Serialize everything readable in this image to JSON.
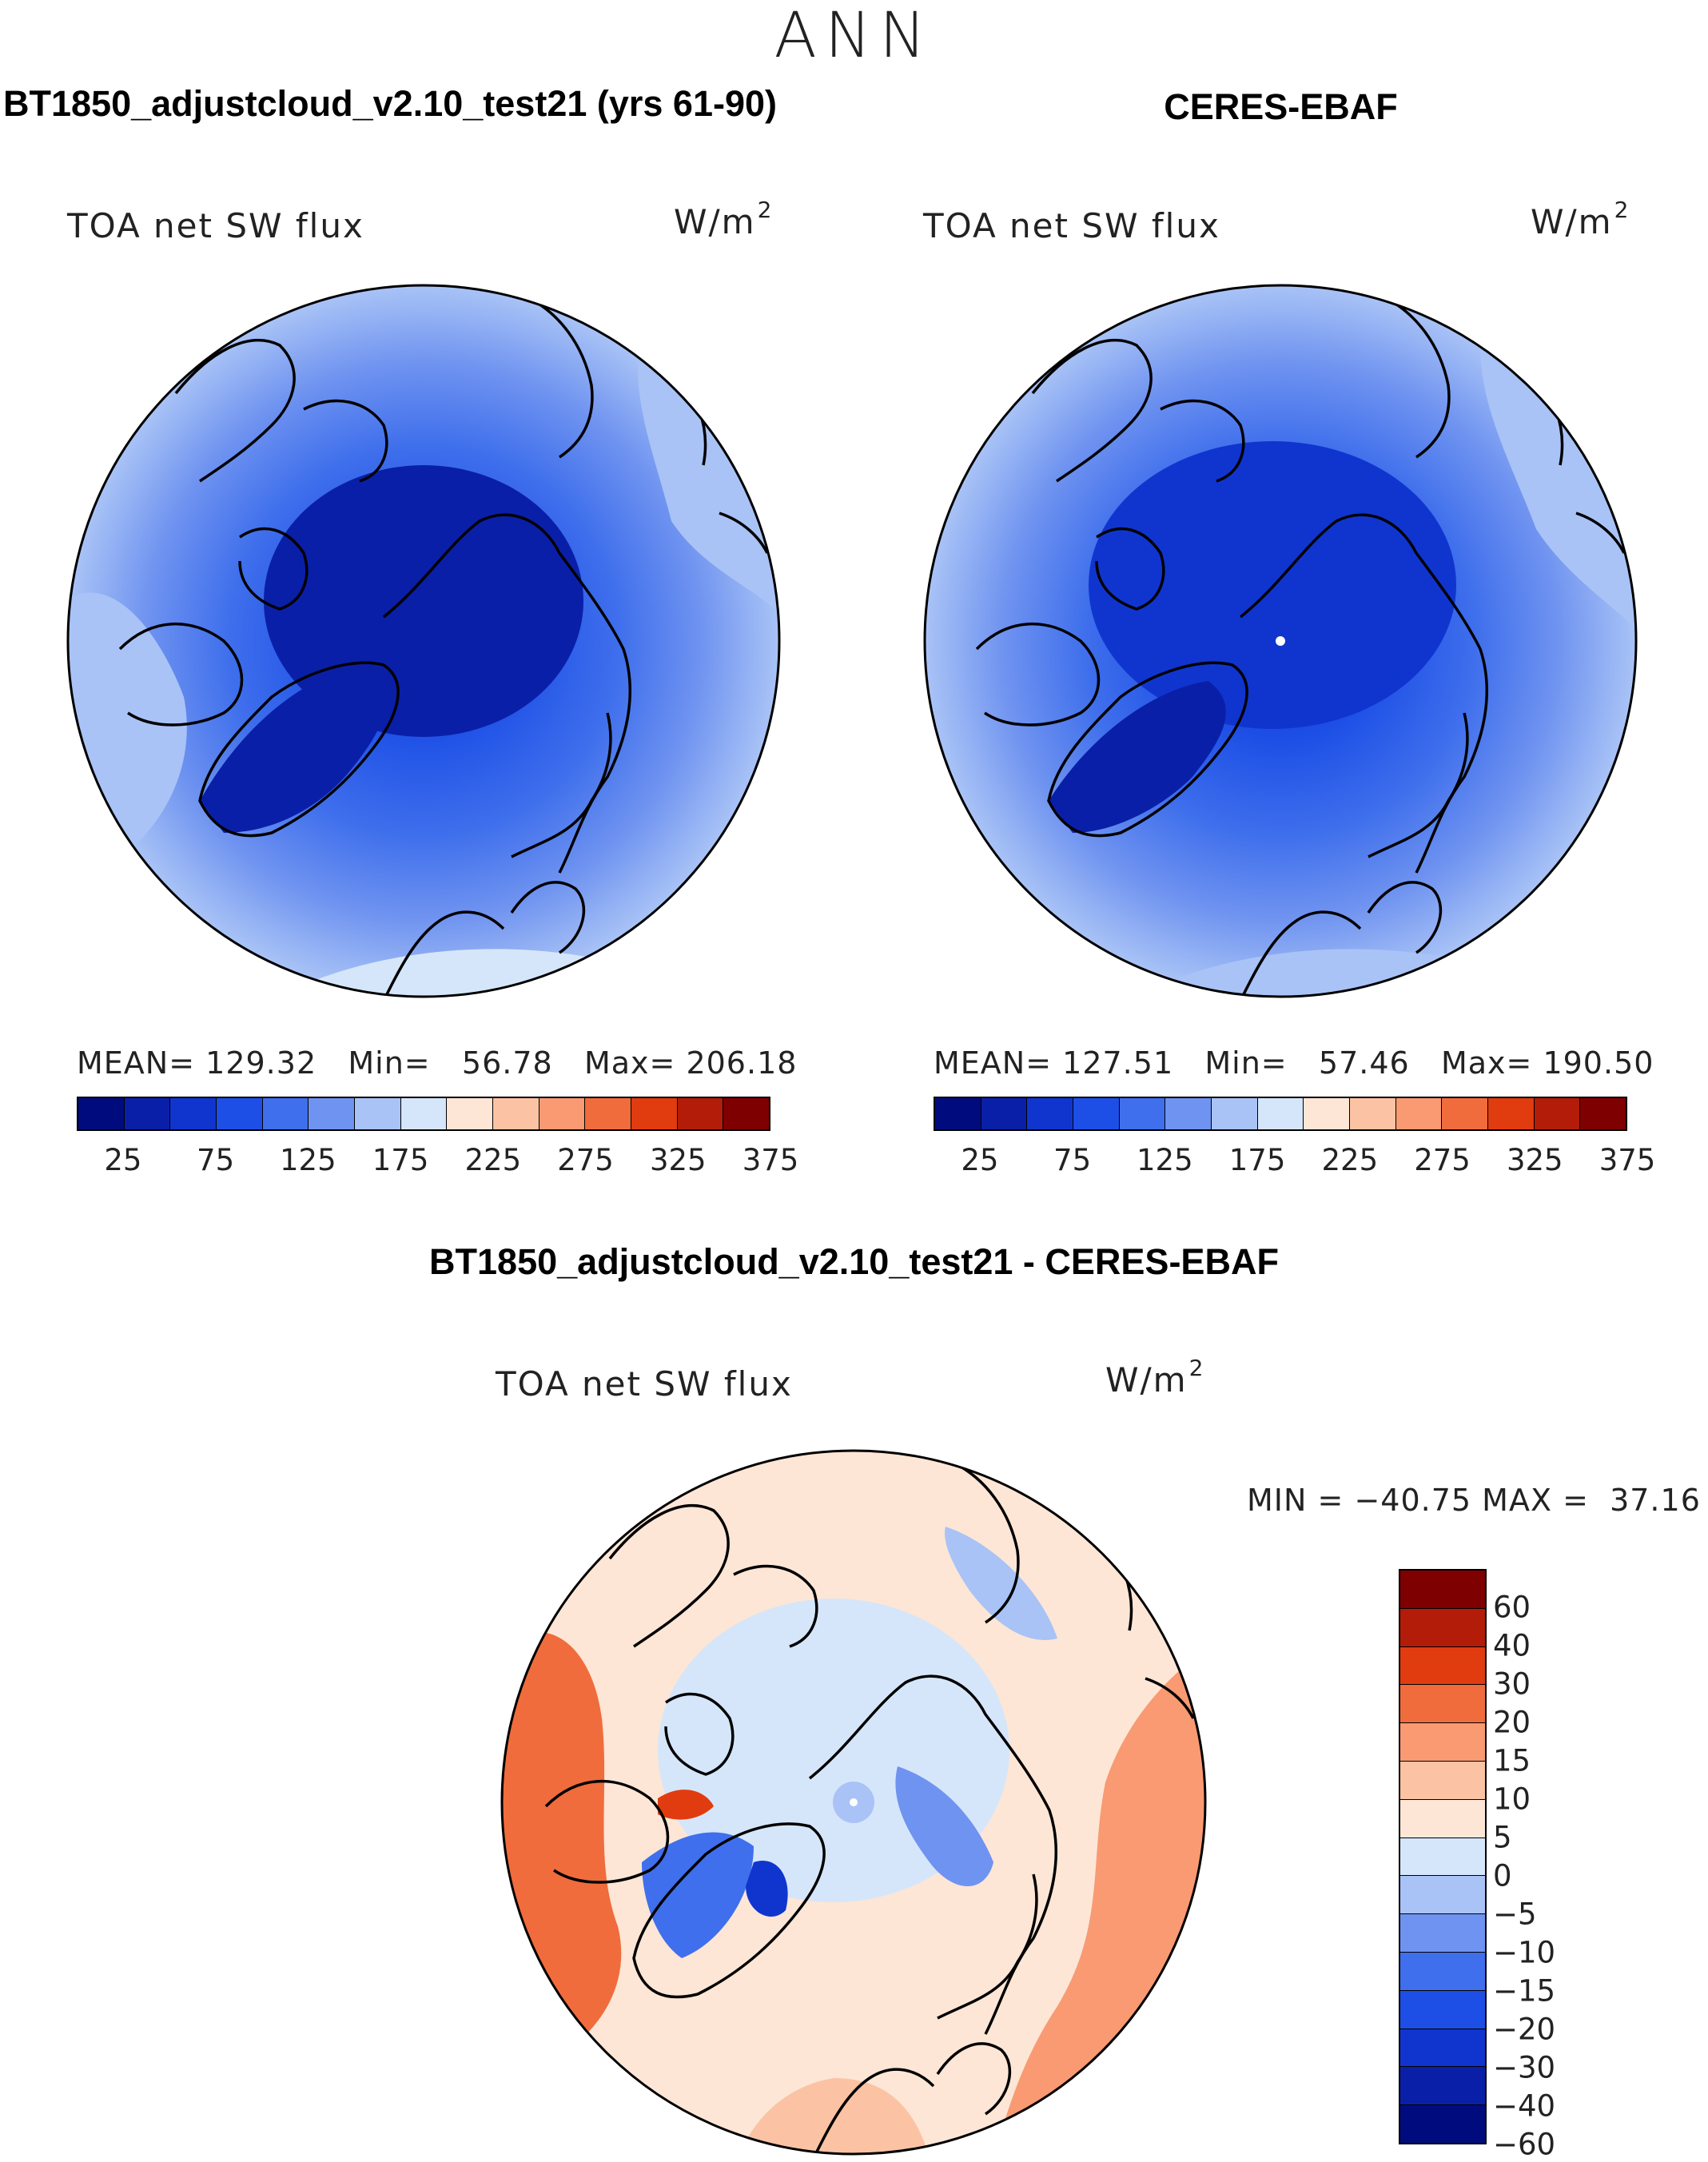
{
  "season_label": "ANN",
  "panels": [
    {
      "title": "BT1850_adjustcloud_v2.10_test21 (yrs 61-90)",
      "map_label": "TOA net SW flux",
      "units_base": "W/m",
      "units_exp": "2",
      "mean_label": "MEAN=",
      "mean_value": "129.32",
      "min_label": "Min=",
      "min_value": "56.78",
      "max_label": "Max=",
      "max_value": "206.18",
      "ice_fraction": 0.55
    },
    {
      "title": "CERES-EBAF",
      "map_label": "TOA net SW flux",
      "units_base": "W/m",
      "units_exp": "2",
      "mean_label": "MEAN=",
      "mean_value": "127.51",
      "min_label": "Min=",
      "min_value": "57.46",
      "max_label": "Max=",
      "max_value": "190.50",
      "ice_fraction": 0.6
    }
  ],
  "abs_colorbar": {
    "colors": [
      "#000c7d",
      "#0a1fa8",
      "#1035cf",
      "#1d4fe6",
      "#3f6fec",
      "#6f93f0",
      "#a9c3f6",
      "#d6e6fa",
      "#fde6d6",
      "#fbc3a4",
      "#f99a72",
      "#f06c3c",
      "#e03c10",
      "#b21c08",
      "#7f0000"
    ],
    "tick_labels": [
      "25",
      "75",
      "125",
      "175",
      "225",
      "275",
      "325",
      "375"
    ]
  },
  "diff": {
    "title": "BT1850_adjustcloud_v2.10_test21 - CERES-EBAF",
    "map_label": "TOA net SW flux",
    "units_base": "W/m",
    "units_exp": "2",
    "min_label": "MIN =",
    "min_value": "−40.75",
    "max_label": "MAX =",
    "max_value": "37.16",
    "colorbar": {
      "colors_top_to_bottom": [
        "#7f0000",
        "#b21c08",
        "#e03c10",
        "#f06c3c",
        "#f99a72",
        "#fbc3a4",
        "#fde6d6",
        "#d6e6fa",
        "#a9c3f6",
        "#6f93f0",
        "#3f6fec",
        "#1d4fe6",
        "#1035cf",
        "#0a1fa8",
        "#000c7d"
      ],
      "labels": [
        "60",
        "40",
        "30",
        "20",
        "15",
        "10",
        "5",
        "0",
        "−5",
        "−10",
        "−15",
        "−20",
        "−30",
        "−40",
        "−60"
      ]
    }
  }
}
